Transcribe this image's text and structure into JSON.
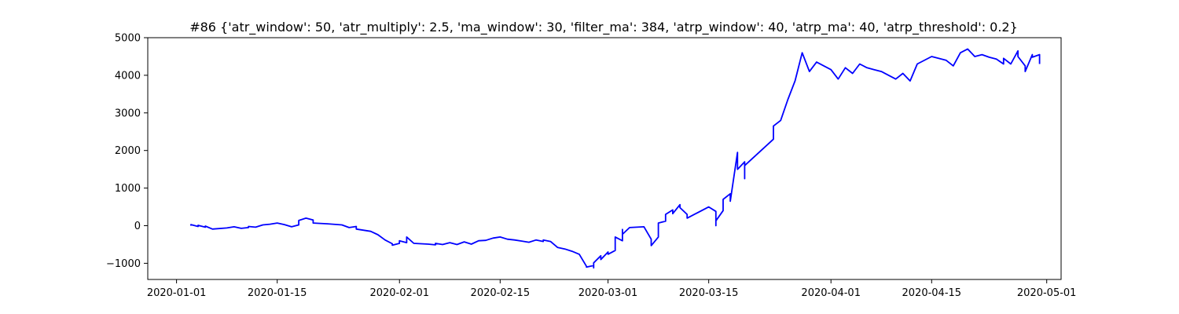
{
  "chart_data": {
    "type": "line",
    "title": "#86 {'atr_window': 50, 'atr_multiply': 2.5, 'ma_window': 30, 'filter_ma': 384, 'atrp_window': 40, 'atrp_ma': 40, 'atrp_threshold': 0.2}",
    "xlabel": "",
    "ylabel": "",
    "x_axis_type": "date",
    "xlim": [
      "2019-12-28",
      "2020-05-03"
    ],
    "ylim": [
      -1430,
      5000
    ],
    "grid": false,
    "legend": "none",
    "color": "#0000ff",
    "x_ticks": [
      "2020-01-01",
      "2020-01-15",
      "2020-02-01",
      "2020-02-15",
      "2020-03-01",
      "2020-03-15",
      "2020-04-01",
      "2020-04-15",
      "2020-05-01"
    ],
    "y_ticks": [
      -1000,
      0,
      1000,
      2000,
      3000,
      4000,
      5000
    ],
    "y_tick_labels": [
      "−1000",
      "0",
      "1000",
      "2000",
      "3000",
      "4000",
      "5000"
    ],
    "series": [
      {
        "points": [
          [
            "2020-01-03",
            0
          ],
          [
            "2020-01-03",
            30
          ],
          [
            "2020-01-04",
            -20
          ],
          [
            "2020-01-04",
            10
          ],
          [
            "2020-01-05",
            -40
          ],
          [
            "2020-01-05",
            -10
          ],
          [
            "2020-01-06",
            -90
          ],
          [
            "2020-01-08",
            -60
          ],
          [
            "2020-01-09",
            -30
          ],
          [
            "2020-01-10",
            -70
          ],
          [
            "2020-01-11",
            -50
          ],
          [
            "2020-01-11",
            -20
          ],
          [
            "2020-01-12",
            -40
          ],
          [
            "2020-01-13",
            20
          ],
          [
            "2020-01-14",
            40
          ],
          [
            "2020-01-15",
            70
          ],
          [
            "2020-01-16",
            30
          ],
          [
            "2020-01-17",
            -30
          ],
          [
            "2020-01-18",
            20
          ],
          [
            "2020-01-18",
            140
          ],
          [
            "2020-01-19",
            200
          ],
          [
            "2020-01-20",
            150
          ],
          [
            "2020-01-20",
            70
          ],
          [
            "2020-01-22",
            50
          ],
          [
            "2020-01-24",
            20
          ],
          [
            "2020-01-25",
            -50
          ],
          [
            "2020-01-26",
            -20
          ],
          [
            "2020-01-26",
            -90
          ],
          [
            "2020-01-28",
            -150
          ],
          [
            "2020-01-29",
            -240
          ],
          [
            "2020-01-30",
            -380
          ],
          [
            "2020-01-31",
            -480
          ],
          [
            "2020-01-31",
            -520
          ],
          [
            "2020-02-01",
            -470
          ],
          [
            "2020-02-01",
            -400
          ],
          [
            "2020-02-02",
            -450
          ],
          [
            "2020-02-02",
            -300
          ],
          [
            "2020-02-03",
            -470
          ],
          [
            "2020-02-05",
            -490
          ],
          [
            "2020-02-06",
            -510
          ],
          [
            "2020-02-06",
            -470
          ],
          [
            "2020-02-07",
            -500
          ],
          [
            "2020-02-08",
            -450
          ],
          [
            "2020-02-09",
            -500
          ],
          [
            "2020-02-10",
            -430
          ],
          [
            "2020-02-11",
            -490
          ],
          [
            "2020-02-12",
            -400
          ],
          [
            "2020-02-13",
            -390
          ],
          [
            "2020-02-14",
            -330
          ],
          [
            "2020-02-15",
            -300
          ],
          [
            "2020-02-16",
            -360
          ],
          [
            "2020-02-17",
            -380
          ],
          [
            "2020-02-18",
            -410
          ],
          [
            "2020-02-19",
            -440
          ],
          [
            "2020-02-20",
            -380
          ],
          [
            "2020-02-21",
            -420
          ],
          [
            "2020-02-21",
            -380
          ],
          [
            "2020-02-22",
            -420
          ],
          [
            "2020-02-23",
            -580
          ],
          [
            "2020-02-24",
            -620
          ],
          [
            "2020-02-25",
            -680
          ],
          [
            "2020-02-26",
            -760
          ],
          [
            "2020-02-27",
            -1080
          ],
          [
            "2020-02-27",
            -1100
          ],
          [
            "2020-02-28",
            -1060
          ],
          [
            "2020-02-28",
            -1120
          ],
          [
            "2020-02-28",
            -990
          ],
          [
            "2020-02-29",
            -800
          ],
          [
            "2020-02-29",
            -900
          ],
          [
            "2020-03-01",
            -700
          ],
          [
            "2020-03-01",
            -760
          ],
          [
            "2020-03-02",
            -660
          ],
          [
            "2020-03-02",
            -300
          ],
          [
            "2020-03-03",
            -400
          ],
          [
            "2020-03-03",
            -100
          ],
          [
            "2020-03-03",
            -230
          ],
          [
            "2020-03-04",
            -50
          ],
          [
            "2020-03-06",
            -30
          ],
          [
            "2020-03-07",
            -360
          ],
          [
            "2020-03-07",
            -530
          ],
          [
            "2020-03-08",
            -300
          ],
          [
            "2020-03-08",
            70
          ],
          [
            "2020-03-09",
            120
          ],
          [
            "2020-03-09",
            300
          ],
          [
            "2020-03-10",
            420
          ],
          [
            "2020-03-10",
            320
          ],
          [
            "2020-03-11",
            560
          ],
          [
            "2020-03-11",
            480
          ],
          [
            "2020-03-12",
            300
          ],
          [
            "2020-03-12",
            200
          ],
          [
            "2020-03-13",
            300
          ],
          [
            "2020-03-15",
            500
          ],
          [
            "2020-03-16",
            380
          ],
          [
            "2020-03-16",
            0
          ],
          [
            "2020-03-16",
            130
          ],
          [
            "2020-03-17",
            400
          ],
          [
            "2020-03-17",
            700
          ],
          [
            "2020-03-18",
            850
          ],
          [
            "2020-03-18",
            650
          ],
          [
            "2020-03-19",
            1950
          ],
          [
            "2020-03-19",
            1800
          ],
          [
            "2020-03-19",
            1500
          ],
          [
            "2020-03-20",
            1700
          ],
          [
            "2020-03-20",
            1250
          ],
          [
            "2020-03-20",
            1600
          ],
          [
            "2020-03-24",
            2300
          ],
          [
            "2020-03-24",
            2650
          ],
          [
            "2020-03-25",
            2800
          ],
          [
            "2020-03-26",
            3350
          ],
          [
            "2020-03-27",
            3850
          ],
          [
            "2020-03-28",
            4600
          ],
          [
            "2020-03-29",
            4100
          ],
          [
            "2020-03-30",
            4350
          ],
          [
            "2020-03-31",
            4250
          ],
          [
            "2020-04-01",
            4150
          ],
          [
            "2020-04-02",
            3900
          ],
          [
            "2020-04-03",
            4200
          ],
          [
            "2020-04-04",
            4050
          ],
          [
            "2020-04-05",
            4300
          ],
          [
            "2020-04-06",
            4200
          ],
          [
            "2020-04-07",
            4150
          ],
          [
            "2020-04-08",
            4100
          ],
          [
            "2020-04-10",
            3900
          ],
          [
            "2020-04-11",
            4050
          ],
          [
            "2020-04-12",
            3850
          ],
          [
            "2020-04-13",
            4300
          ],
          [
            "2020-04-15",
            4500
          ],
          [
            "2020-04-17",
            4400
          ],
          [
            "2020-04-18",
            4250
          ],
          [
            "2020-04-19",
            4600
          ],
          [
            "2020-04-20",
            4700
          ],
          [
            "2020-04-21",
            4500
          ],
          [
            "2020-04-22",
            4550
          ],
          [
            "2020-04-23",
            4480
          ],
          [
            "2020-04-24",
            4430
          ],
          [
            "2020-04-25",
            4300
          ],
          [
            "2020-04-25",
            4450
          ],
          [
            "2020-04-26",
            4300
          ],
          [
            "2020-04-27",
            4650
          ],
          [
            "2020-04-27",
            4500
          ],
          [
            "2020-04-28",
            4250
          ],
          [
            "2020-04-28",
            4100
          ],
          [
            "2020-04-29",
            4550
          ],
          [
            "2020-04-29",
            4480
          ],
          [
            "2020-04-30",
            4550
          ],
          [
            "2020-04-30",
            4430
          ],
          [
            "2020-04-30",
            4300
          ]
        ]
      }
    ]
  }
}
